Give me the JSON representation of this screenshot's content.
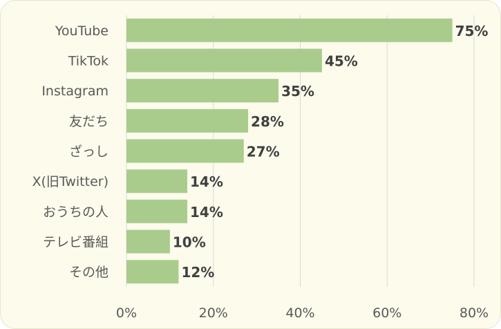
{
  "chart_data": {
    "type": "bar",
    "orientation": "horizontal",
    "categories": [
      "YouTube",
      "TikTok",
      "Instagram",
      "友だち",
      "ざっし",
      "X(旧Twitter)",
      "おうちの人",
      "テレビ番組",
      "その他"
    ],
    "values": [
      75,
      45,
      35,
      28,
      27,
      14,
      14,
      10,
      12
    ],
    "value_labels": [
      "75%",
      "45%",
      "35%",
      "28%",
      "27%",
      "14%",
      "14%",
      "10%",
      "12%"
    ],
    "x_ticks": [
      "0%",
      "20%",
      "40%",
      "60%",
      "80%"
    ],
    "xlim": [
      0,
      80
    ],
    "grid": "vertical",
    "bar_color": "#a9cc8c",
    "background_color": "#fcfbec",
    "legend": "none",
    "title": "",
    "xlabel": "",
    "ylabel": ""
  }
}
